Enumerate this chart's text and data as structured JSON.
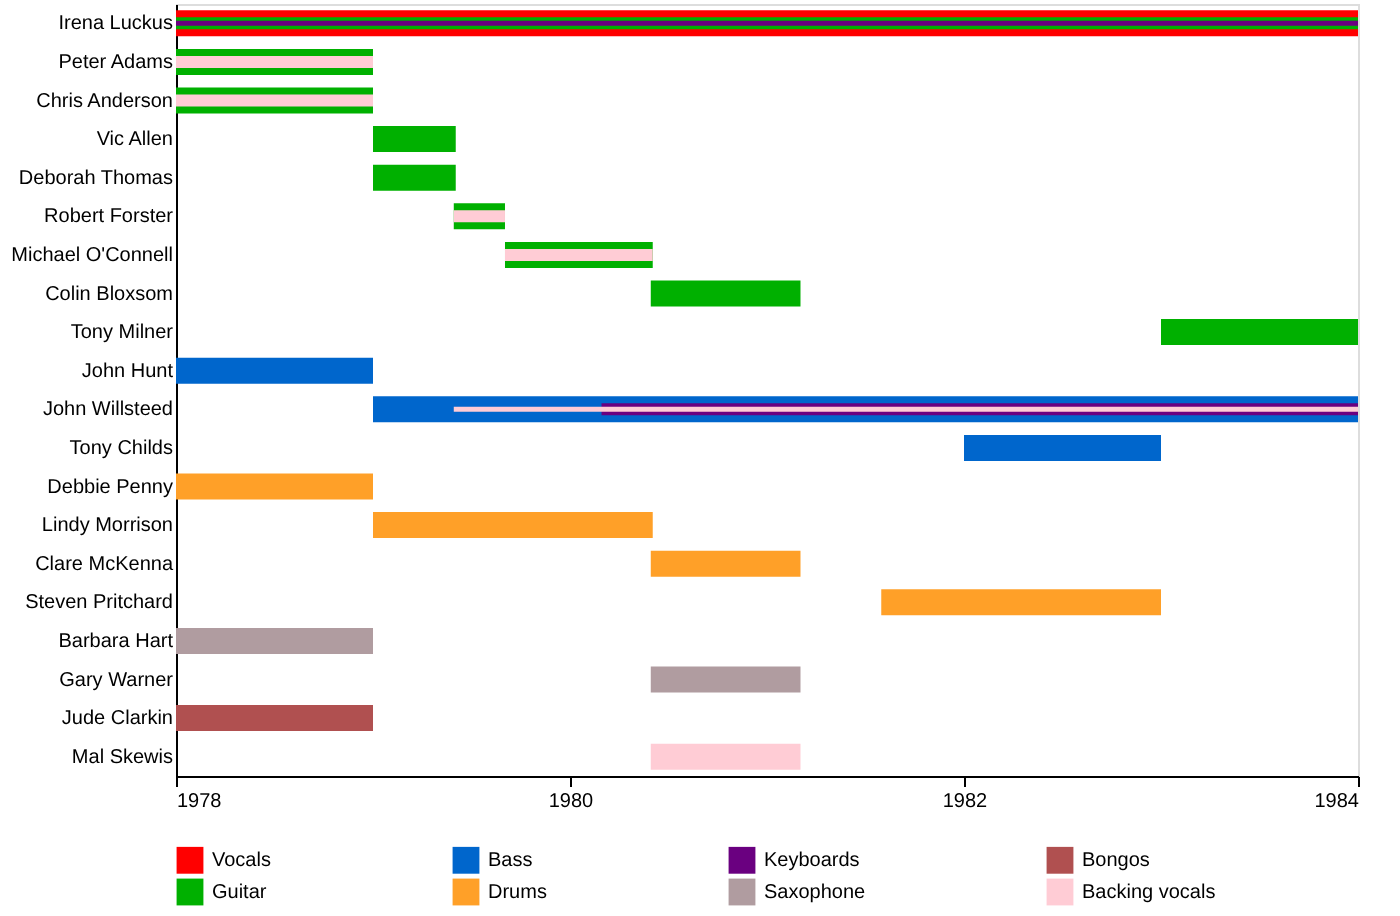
{
  "chart_data": {
    "type": "bar",
    "orientation": "horizontal",
    "categories": [
      "Irena Luckus",
      "Peter Adams",
      "Chris Anderson",
      "Vic Allen",
      "Deborah Thomas",
      "Robert Forster",
      "Michael O'Connell",
      "Colin Bloxsom",
      "Tony Milner",
      "John Hunt",
      "John Willsteed",
      "Tony Childs",
      "Debbie Penny",
      "Lindy Morrison",
      "Clare McKenna",
      "Steven Pritchard",
      "Barbara Hart",
      "Gary Warner",
      "Jude Clarkin",
      "Mal Skewis"
    ],
    "series": [
      {
        "name": "Vocals",
        "color": "#ff0000",
        "base": [
          1978,
          null,
          null,
          null,
          null,
          null,
          null,
          null,
          null,
          null,
          null,
          null,
          null,
          null,
          null,
          null,
          null,
          null,
          null,
          null
        ],
        "values": [
          6,
          null,
          null,
          null,
          null,
          null,
          null,
          null,
          null,
          null,
          null,
          null,
          null,
          null,
          null,
          null,
          null,
          null,
          null,
          null
        ]
      },
      {
        "name": "Guitar",
        "color": "#00b000",
        "base": [
          1978,
          1978,
          1978,
          1979,
          1979,
          1979.41,
          1979.67,
          1980.41,
          1983,
          null,
          null,
          null,
          null,
          null,
          null,
          null,
          null,
          null,
          null,
          null
        ],
        "values": [
          6,
          1,
          1,
          0.42,
          0.42,
          0.26,
          0.75,
          0.76,
          1,
          null,
          null,
          null,
          null,
          null,
          null,
          null,
          null,
          null,
          null,
          null
        ]
      },
      {
        "name": "Bass",
        "color": "#0066cc",
        "base": [
          null,
          null,
          null,
          null,
          null,
          null,
          null,
          null,
          null,
          1978,
          1979,
          1982,
          null,
          null,
          null,
          null,
          null,
          null,
          null,
          null
        ],
        "values": [
          null,
          null,
          null,
          null,
          null,
          null,
          null,
          null,
          null,
          1,
          5,
          1,
          null,
          null,
          null,
          null,
          null,
          null,
          null,
          null
        ]
      },
      {
        "name": "Drums",
        "color": "#ffa028",
        "base": [
          null,
          null,
          null,
          null,
          null,
          null,
          null,
          null,
          null,
          null,
          null,
          null,
          1978,
          1979,
          1980.41,
          1981.58,
          null,
          null,
          null,
          null
        ],
        "values": [
          null,
          null,
          null,
          null,
          null,
          null,
          null,
          null,
          null,
          null,
          null,
          null,
          1,
          1.42,
          0.76,
          1.42,
          null,
          null,
          null,
          null
        ]
      },
      {
        "name": "Keyboards",
        "color": "#6a0080",
        "base": [
          1978,
          null,
          null,
          null,
          null,
          null,
          null,
          null,
          null,
          null,
          1980.16,
          null,
          null,
          null,
          null,
          null,
          null,
          null,
          null,
          null
        ],
        "values": [
          6,
          null,
          null,
          null,
          null,
          null,
          null,
          null,
          null,
          null,
          3.84,
          null,
          null,
          null,
          null,
          null,
          null,
          null,
          null,
          null
        ]
      },
      {
        "name": "Saxophone",
        "color": "#b09ca0",
        "base": [
          null,
          null,
          null,
          null,
          null,
          null,
          null,
          null,
          null,
          null,
          null,
          null,
          null,
          null,
          null,
          null,
          1978,
          1980.41,
          null,
          null
        ],
        "values": [
          null,
          null,
          null,
          null,
          null,
          null,
          null,
          null,
          null,
          null,
          null,
          null,
          null,
          null,
          null,
          null,
          1,
          0.76,
          null,
          null
        ]
      },
      {
        "name": "Bongos",
        "color": "#b05050",
        "base": [
          null,
          null,
          null,
          null,
          null,
          null,
          null,
          null,
          null,
          null,
          null,
          null,
          null,
          null,
          null,
          null,
          null,
          null,
          1978,
          null
        ],
        "values": [
          null,
          null,
          null,
          null,
          null,
          null,
          null,
          null,
          null,
          null,
          null,
          null,
          null,
          null,
          null,
          null,
          null,
          null,
          1,
          null
        ]
      },
      {
        "name": "Backing vocals",
        "color": "#ffccd5",
        "base": [
          null,
          1978,
          1978,
          null,
          null,
          1979.41,
          1979.67,
          null,
          null,
          null,
          1979.41,
          null,
          null,
          null,
          null,
          null,
          null,
          null,
          null,
          1980.41
        ],
        "values": [
          null,
          1,
          1,
          null,
          null,
          0.26,
          0.75,
          null,
          null,
          null,
          4.59,
          null,
          null,
          null,
          null,
          null,
          null,
          null,
          null,
          0.76
        ]
      }
    ],
    "xlim": [
      1978,
      1984
    ],
    "xticks": [
      1978,
      1980,
      1982,
      1984
    ],
    "grid": false,
    "legend": "bottom"
  }
}
